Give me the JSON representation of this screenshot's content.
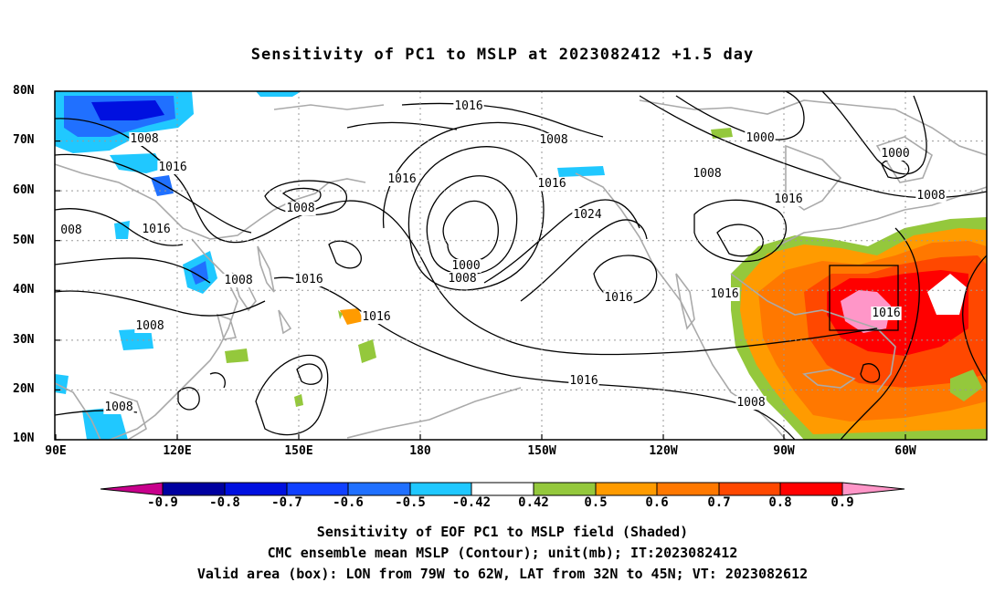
{
  "title": "Sensitivity of PC1 to MSLP at 2023082412 +1.5 day",
  "lat_labels": [
    "80N",
    "70N",
    "60N",
    "50N",
    "40N",
    "30N",
    "20N",
    "10N"
  ],
  "lon_labels": [
    "90E",
    "120E",
    "150E",
    "180",
    "150W",
    "120W",
    "90W",
    "60W"
  ],
  "colorbar": {
    "labels": [
      "-0.9",
      "-0.8",
      "-0.7",
      "-0.6",
      "-0.5",
      "-0.42",
      "0.42",
      "0.5",
      "0.6",
      "0.7",
      "0.8",
      "0.9"
    ],
    "colors": [
      "#c8008c",
      "#0000a0",
      "#0010e0",
      "#1040ff",
      "#2070ff",
      "#3090ff",
      "#20c8ff",
      "#ffffff",
      "#94c83c",
      "#ff9b00",
      "#ff7800",
      "#ff4800",
      "#ff0000",
      "#ff96c8"
    ]
  },
  "contour_labels": [
    "1016",
    "1008",
    "1016",
    "1008",
    "1016",
    "1016",
    "1000",
    "1000",
    "1008",
    "1016",
    "1008",
    "1024",
    "1016",
    "1008",
    "1000",
    "1016",
    "1016",
    "1008",
    "1016",
    "1008",
    "1016",
    "1016",
    "1008",
    "1016",
    "1008",
    "008"
  ],
  "captions": [
    "Sensitivity of EOF PC1 to MSLP field (Shaded)",
    "CMC ensemble mean MSLP (Contour); unit(mb); IT:2023082412",
    "Valid area (box): LON from 79W to 62W, LAT from 32N to 45N; VT: 2023082612"
  ]
}
